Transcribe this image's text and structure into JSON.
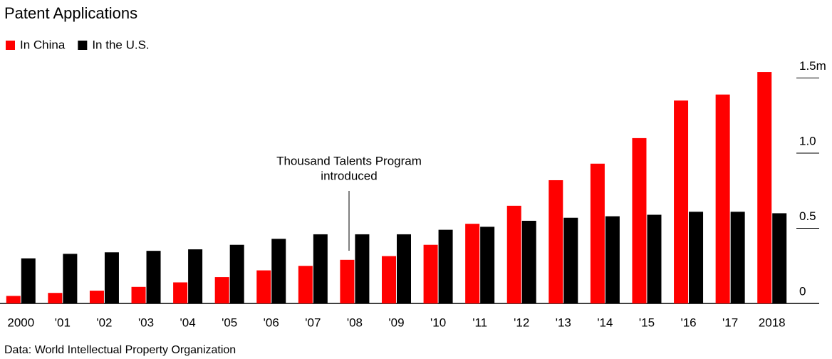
{
  "chart_data": {
    "type": "bar",
    "title": "Patent Applications",
    "source": "Data: World Intellectual Property Organization",
    "annotation": [
      "Thousand Talents Program",
      "introduced"
    ],
    "categories": [
      "2000",
      "'01",
      "'02",
      "'03",
      "'04",
      "'05",
      "'06",
      "'07",
      "'08",
      "'09",
      "'10",
      "'11",
      "'12",
      "'13",
      "'14",
      "'15",
      "'16",
      "'17",
      "2018"
    ],
    "series": [
      {
        "name": "In China",
        "color": "#ff0000",
        "values": [
          0.05,
          0.07,
          0.085,
          0.11,
          0.14,
          0.175,
          0.22,
          0.25,
          0.29,
          0.315,
          0.39,
          0.53,
          0.65,
          0.82,
          0.93,
          1.1,
          1.35,
          1.39,
          1.54
        ]
      },
      {
        "name": "In the U.S.",
        "color": "#000000",
        "values": [
          0.3,
          0.33,
          0.34,
          0.35,
          0.36,
          0.39,
          0.43,
          0.46,
          0.46,
          0.46,
          0.49,
          0.51,
          0.55,
          0.57,
          0.58,
          0.59,
          0.61,
          0.61,
          0.6
        ]
      }
    ],
    "ylim": [
      0,
      1.6
    ],
    "yticks": [
      0,
      0.5,
      {
        "value": 1,
        "label": "1.0"
      },
      {
        "value": 1.5,
        "label": "1.5m"
      }
    ],
    "grid": false
  }
}
